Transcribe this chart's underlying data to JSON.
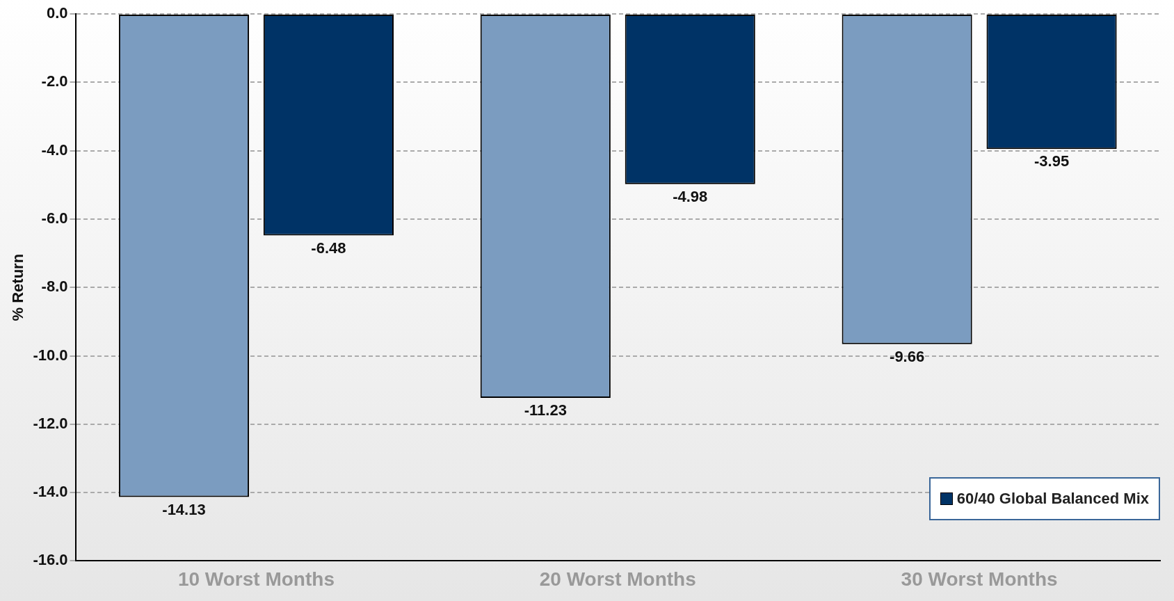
{
  "chart_data": {
    "type": "bar",
    "ylabel": "% Return",
    "categories": [
      "10 Worst Months",
      "20 Worst Months",
      "30 Worst Months"
    ],
    "series": [
      {
        "color": "#7b9cc0",
        "values": [
          -14.13,
          -11.23,
          -9.66
        ]
      },
      {
        "name": "60/40 Global Balanced Mix",
        "color": "#003366",
        "values": [
          -6.48,
          -4.98,
          -3.95
        ]
      }
    ],
    "ylim": [
      -16,
      0
    ],
    "yticks": [
      {
        "value": -16,
        "label": "-16.0"
      },
      {
        "value": -14,
        "label": "-14.0"
      },
      {
        "value": -12,
        "label": "-12.0"
      },
      {
        "value": -10,
        "label": "-10.0"
      },
      {
        "value": -8,
        "label": "-8.0"
      },
      {
        "value": -6,
        "label": "-6.0"
      },
      {
        "value": -4,
        "label": "-4.0"
      },
      {
        "value": -2,
        "label": "-2.0"
      },
      {
        "value": 0,
        "label": "0.0"
      }
    ],
    "grid": "y",
    "line_style": "dashed",
    "legend": "bottom right",
    "data_labels": true
  }
}
